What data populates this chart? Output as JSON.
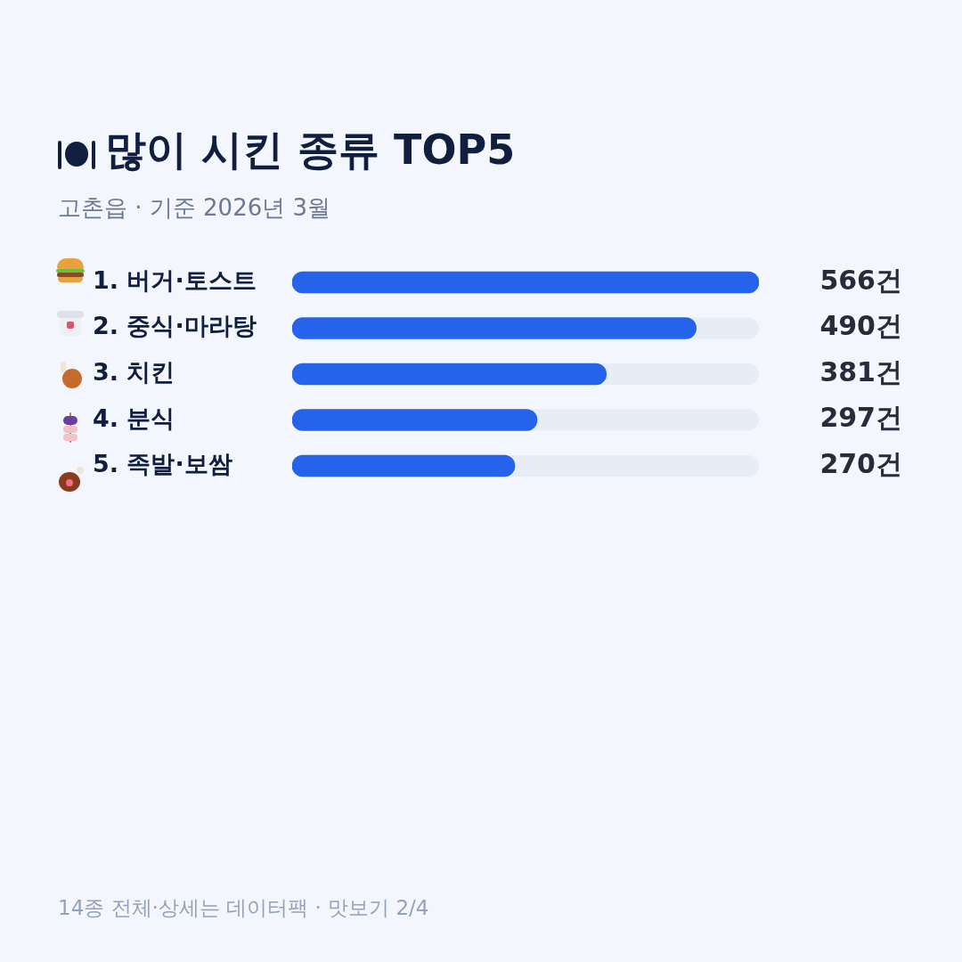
{
  "chart_data": {
    "type": "bar",
    "orientation": "horizontal",
    "title": "많이 시킨 종류 TOP5",
    "subtitle": "고촌읍 · 기준 2026년 3월",
    "categories": [
      "1. 버거·토스트",
      "2. 중식·마라탕",
      "3. 치킨",
      "4. 분식",
      "5. 족발·보쌈"
    ],
    "values": [
      566,
      490,
      381,
      297,
      270
    ],
    "color": "#2563eb",
    "value_labels": [
      "566건",
      "490건",
      "381건",
      "297건",
      "270건"
    ],
    "xlim": [
      0,
      566
    ],
    "tick_labels": "y",
    "grid": false,
    "legend": false,
    "annotations": [
      "14종 전체·상세는 데이터팩 · 맛보기 2/4"
    ]
  }
}
